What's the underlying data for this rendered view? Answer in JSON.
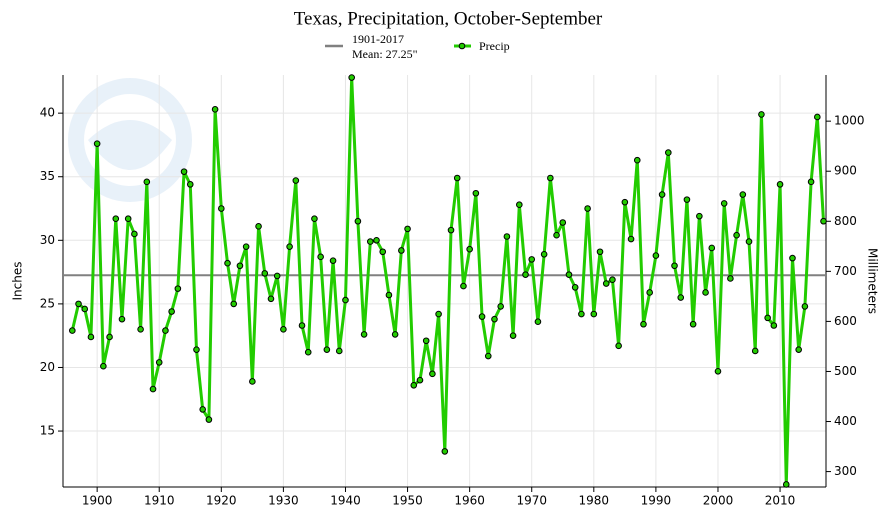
{
  "chart_data": {
    "type": "line",
    "title": "Texas, Precipitation, October-September",
    "ylabel": "Inches",
    "y2label": "Millimeters",
    "mean": {
      "period": "1901-2017",
      "label": "Mean: 27.25\"",
      "value": 27.25,
      "color": "#808080"
    },
    "x": [
      1896,
      1897,
      1898,
      1899,
      1900,
      1901,
      1902,
      1903,
      1904,
      1905,
      1906,
      1907,
      1908,
      1909,
      1910,
      1911,
      1912,
      1913,
      1914,
      1915,
      1916,
      1917,
      1918,
      1919,
      1920,
      1921,
      1922,
      1923,
      1924,
      1925,
      1926,
      1927,
      1928,
      1929,
      1930,
      1931,
      1932,
      1933,
      1934,
      1935,
      1936,
      1937,
      1938,
      1939,
      1940,
      1941,
      1942,
      1943,
      1944,
      1945,
      1946,
      1947,
      1948,
      1949,
      1950,
      1951,
      1952,
      1953,
      1954,
      1955,
      1956,
      1957,
      1958,
      1959,
      1960,
      1961,
      1962,
      1963,
      1964,
      1965,
      1966,
      1967,
      1968,
      1969,
      1970,
      1971,
      1972,
      1973,
      1974,
      1975,
      1976,
      1977,
      1978,
      1979,
      1980,
      1981,
      1982,
      1983,
      1984,
      1985,
      1986,
      1987,
      1988,
      1989,
      1990,
      1991,
      1992,
      1993,
      1994,
      1995,
      1996,
      1997,
      1998,
      1999,
      2000,
      2001,
      2002,
      2003,
      2004,
      2005,
      2006,
      2007,
      2008,
      2009,
      2010,
      2011,
      2012,
      2013,
      2014,
      2015,
      2016,
      2017
    ],
    "series": [
      {
        "name": "Precip",
        "color": "#22cc00",
        "values": [
          22.9,
          25.0,
          24.6,
          22.4,
          37.6,
          20.1,
          22.4,
          31.7,
          23.8,
          31.7,
          30.5,
          23.0,
          34.6,
          18.3,
          20.4,
          22.9,
          24.4,
          26.2,
          35.4,
          34.4,
          21.4,
          16.7,
          15.9,
          40.3,
          32.5,
          28.2,
          25.0,
          28.0,
          29.5,
          18.9,
          31.1,
          27.4,
          25.4,
          27.2,
          23.0,
          29.5,
          34.7,
          23.3,
          21.2,
          31.7,
          28.7,
          21.4,
          28.4,
          21.3,
          25.3,
          42.8,
          31.5,
          22.6,
          29.9,
          30.0,
          29.1,
          25.7,
          22.6,
          29.2,
          30.9,
          18.6,
          19.0,
          22.1,
          19.5,
          24.2,
          13.4,
          30.8,
          34.9,
          26.4,
          29.3,
          33.7,
          24.0,
          20.9,
          23.8,
          24.8,
          30.3,
          22.5,
          32.8,
          27.3,
          28.5,
          23.6,
          28.9,
          34.9,
          30.4,
          31.4,
          27.3,
          26.3,
          24.2,
          32.5,
          24.2,
          29.1,
          26.6,
          26.9,
          21.7,
          33.0,
          30.1,
          36.3,
          23.4,
          25.9,
          28.8,
          33.6,
          36.9,
          28.0,
          25.5,
          33.2,
          23.4,
          31.9,
          25.9,
          29.4,
          19.7,
          32.9,
          27.0,
          30.4,
          33.6,
          29.9,
          21.3,
          39.9,
          23.9,
          23.3,
          34.4,
          10.8,
          28.6,
          21.4,
          24.8,
          34.6,
          39.7,
          31.5
        ]
      }
    ],
    "xlim": [
      1894.5,
      2017.4
    ],
    "xticks": [
      1900,
      1910,
      1920,
      1930,
      1940,
      1950,
      1960,
      1970,
      1980,
      1990,
      2000,
      2010
    ],
    "ylim": [
      10.6,
      43
    ],
    "yticks": [
      15,
      20,
      25,
      30,
      35,
      40
    ],
    "y2lim": [
      269.2,
      1092.2
    ],
    "y2ticks": [
      300,
      400,
      500,
      600,
      700,
      800,
      900,
      1000
    ],
    "grid": true
  }
}
